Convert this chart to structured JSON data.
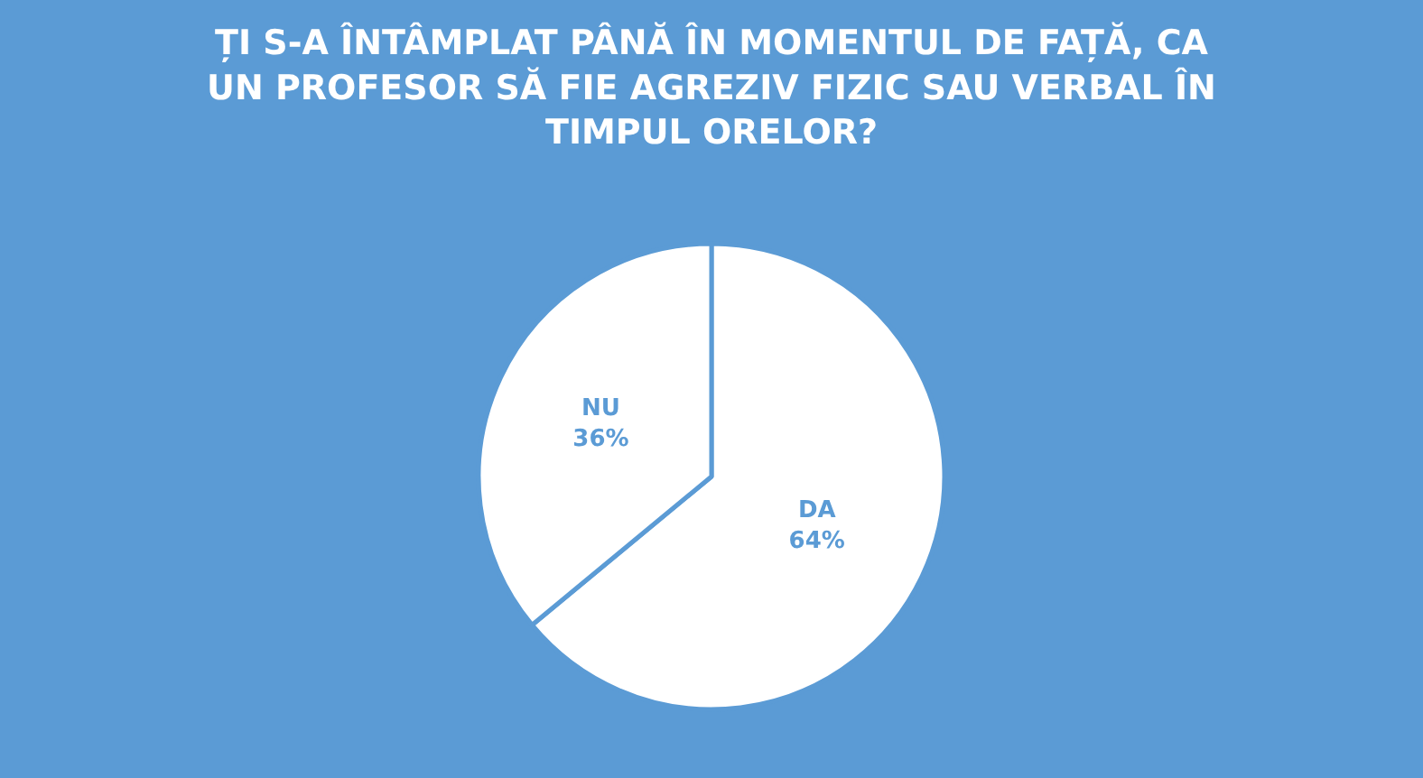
{
  "chart_data": {
    "type": "pie",
    "title": "ȚI S-A ÎNTÂMPLAT PÂNĂ ÎN MOMENTUL DE FAȚĂ, CA UN PROFESOR SĂ FIE AGREZIV FIZIC SAU VERBAL ÎN TIMPUL ORELOR?",
    "categories": [
      "DA",
      "NU"
    ],
    "values": [
      64,
      36
    ],
    "colors": [
      "#ffffff",
      "#ffffff"
    ],
    "value_labels": [
      "64%",
      "36%"
    ],
    "legend": false
  }
}
